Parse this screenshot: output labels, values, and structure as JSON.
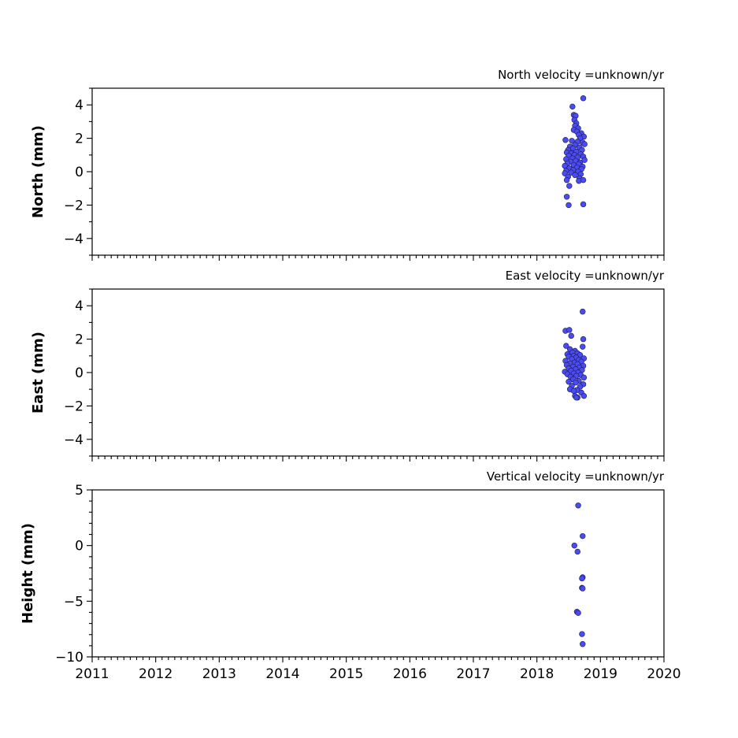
{
  "chart_data": [
    {
      "type": "scatter",
      "title": "North velocity =unknown/yr",
      "ylabel": "North (mm)",
      "xlim": [
        2011,
        2020
      ],
      "ylim": [
        -5,
        5
      ],
      "yticks": [
        -4,
        -2,
        0,
        2,
        4
      ],
      "yminor_step": 1,
      "x_tick_labels_visible": false,
      "marker_color": "#4b4bf2",
      "points": [
        [
          2018.73,
          4.4
        ],
        [
          2018.56,
          3.9
        ],
        [
          2018.58,
          3.4
        ],
        [
          2018.61,
          3.35
        ],
        [
          2018.59,
          3.1
        ],
        [
          2018.62,
          2.9
        ],
        [
          2018.6,
          2.75
        ],
        [
          2018.65,
          2.6
        ],
        [
          2018.58,
          2.5
        ],
        [
          2018.63,
          2.4
        ],
        [
          2018.7,
          2.3
        ],
        [
          2018.66,
          2.2
        ],
        [
          2018.74,
          2.1
        ],
        [
          2018.68,
          2.0
        ],
        [
          2018.45,
          1.9
        ],
        [
          2018.55,
          1.85
        ],
        [
          2018.64,
          1.8
        ],
        [
          2018.72,
          1.75
        ],
        [
          2018.75,
          1.65
        ],
        [
          2018.6,
          1.6
        ],
        [
          2018.52,
          1.5
        ],
        [
          2018.67,
          1.45
        ],
        [
          2018.57,
          1.4
        ],
        [
          2018.49,
          1.3
        ],
        [
          2018.71,
          1.3
        ],
        [
          2018.62,
          1.2
        ],
        [
          2018.47,
          1.15
        ],
        [
          2018.54,
          1.1
        ],
        [
          2018.69,
          1.05
        ],
        [
          2018.59,
          1.0
        ],
        [
          2018.5,
          0.95
        ],
        [
          2018.73,
          0.9
        ],
        [
          2018.64,
          0.85
        ],
        [
          2018.56,
          0.8
        ],
        [
          2018.46,
          0.75
        ],
        [
          2018.75,
          0.7
        ],
        [
          2018.61,
          0.65
        ],
        [
          2018.53,
          0.6
        ],
        [
          2018.68,
          0.55
        ],
        [
          2018.48,
          0.5
        ],
        [
          2018.66,
          0.45
        ],
        [
          2018.58,
          0.4
        ],
        [
          2018.44,
          0.35
        ],
        [
          2018.72,
          0.3
        ],
        [
          2018.63,
          0.25
        ],
        [
          2018.51,
          0.2
        ],
        [
          2018.7,
          0.15
        ],
        [
          2018.57,
          0.1
        ],
        [
          2018.46,
          0.05
        ],
        [
          2018.65,
          0.0
        ],
        [
          2018.54,
          -0.05
        ],
        [
          2018.44,
          -0.1
        ],
        [
          2018.69,
          -0.15
        ],
        [
          2018.6,
          -0.2
        ],
        [
          2018.49,
          -0.3
        ],
        [
          2018.67,
          -0.4
        ],
        [
          2018.47,
          -0.5
        ],
        [
          2018.66,
          -0.55
        ],
        [
          2018.73,
          -0.5
        ],
        [
          2018.51,
          -0.85
        ],
        [
          2018.47,
          -1.5
        ],
        [
          2018.5,
          -2.0
        ],
        [
          2018.73,
          -1.95
        ]
      ]
    },
    {
      "type": "scatter",
      "title": "East velocity =unknown/yr",
      "ylabel": "East (mm)",
      "xlim": [
        2011,
        2020
      ],
      "ylim": [
        -5,
        5
      ],
      "yticks": [
        -4,
        -2,
        0,
        2,
        4
      ],
      "yminor_step": 1,
      "x_tick_labels_visible": false,
      "marker_color": "#4b4bf2",
      "points": [
        [
          2018.72,
          3.65
        ],
        [
          2018.45,
          2.5
        ],
        [
          2018.51,
          2.55
        ],
        [
          2018.54,
          2.2
        ],
        [
          2018.73,
          2.0
        ],
        [
          2018.46,
          1.6
        ],
        [
          2018.72,
          1.55
        ],
        [
          2018.52,
          1.4
        ],
        [
          2018.6,
          1.3
        ],
        [
          2018.56,
          1.2
        ],
        [
          2018.64,
          1.15
        ],
        [
          2018.48,
          1.1
        ],
        [
          2018.68,
          1.05
        ],
        [
          2018.58,
          1.0
        ],
        [
          2018.5,
          0.95
        ],
        [
          2018.62,
          0.9
        ],
        [
          2018.74,
          0.85
        ],
        [
          2018.55,
          0.8
        ],
        [
          2018.66,
          0.75
        ],
        [
          2018.45,
          0.7
        ],
        [
          2018.7,
          0.65
        ],
        [
          2018.59,
          0.6
        ],
        [
          2018.52,
          0.55
        ],
        [
          2018.64,
          0.5
        ],
        [
          2018.47,
          0.45
        ],
        [
          2018.73,
          0.4
        ],
        [
          2018.57,
          0.35
        ],
        [
          2018.67,
          0.3
        ],
        [
          2018.5,
          0.25
        ],
        [
          2018.61,
          0.2
        ],
        [
          2018.71,
          0.15
        ],
        [
          2018.54,
          0.1
        ],
        [
          2018.44,
          0.05
        ],
        [
          2018.65,
          0.0
        ],
        [
          2018.58,
          -0.05
        ],
        [
          2018.48,
          -0.1
        ],
        [
          2018.69,
          -0.15
        ],
        [
          2018.62,
          -0.2
        ],
        [
          2018.53,
          -0.25
        ],
        [
          2018.74,
          -0.3
        ],
        [
          2018.57,
          -0.4
        ],
        [
          2018.66,
          -0.5
        ],
        [
          2018.5,
          -0.55
        ],
        [
          2018.61,
          -0.6
        ],
        [
          2018.73,
          -0.7
        ],
        [
          2018.55,
          -0.8
        ],
        [
          2018.68,
          -0.85
        ],
        [
          2018.52,
          -1.0
        ],
        [
          2018.63,
          -1.05
        ],
        [
          2018.58,
          -1.1
        ],
        [
          2018.7,
          -1.2
        ],
        [
          2018.6,
          -1.4
        ],
        [
          2018.64,
          -1.5
        ],
        [
          2018.74,
          -1.4
        ],
        [
          2018.62,
          -1.5
        ]
      ]
    },
    {
      "type": "scatter",
      "title": "Vertical velocity =unknown/yr",
      "ylabel": "Height (mm)",
      "xlim": [
        2011,
        2020
      ],
      "ylim": [
        -10,
        5
      ],
      "yticks": [
        -10,
        -5,
        0,
        5
      ],
      "yminor_step": 1,
      "x_tick_labels_visible": true,
      "xticks": [
        2011,
        2012,
        2013,
        2014,
        2015,
        2016,
        2017,
        2018,
        2019,
        2020
      ],
      "xtick_labels": [
        "2011",
        "2012",
        "2013",
        "2014",
        "2015",
        "2016",
        "2017",
        "2018",
        "2019",
        "2020"
      ],
      "xminor_step": 0.1,
      "marker_color": "#4b4bf2",
      "points": [
        [
          2018.65,
          3.6
        ],
        [
          2018.72,
          0.85
        ],
        [
          2018.59,
          0.0
        ],
        [
          2018.64,
          -0.55
        ],
        [
          2018.72,
          -2.85
        ],
        [
          2018.71,
          -2.95
        ],
        [
          2018.71,
          -3.8
        ],
        [
          2018.72,
          -3.85
        ],
        [
          2018.63,
          -5.95
        ],
        [
          2018.65,
          -6.05
        ],
        [
          2018.71,
          -7.95
        ],
        [
          2018.72,
          -8.85
        ]
      ]
    }
  ]
}
